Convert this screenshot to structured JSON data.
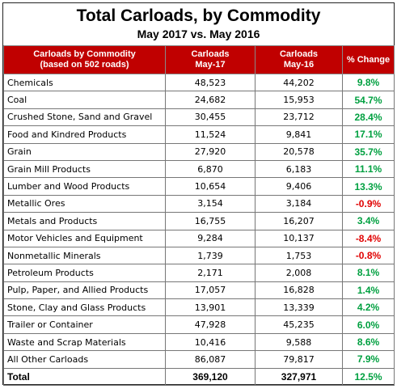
{
  "header": {
    "title": "Total Carloads, by Commodity",
    "subtitle": "May 2017 vs. May 2016"
  },
  "table": {
    "columns": [
      "Carloads by Commodity\n(based on 502 roads)",
      "Carloads\nMay-17",
      "Carloads\nMay-16",
      "% Change"
    ],
    "rows": [
      [
        "Chemicals",
        "48,523",
        "44,202",
        "9.8%"
      ],
      [
        "Coal",
        "24,682",
        "15,953",
        "54.7%"
      ],
      [
        "Crushed Stone, Sand and Gravel",
        "30,455",
        "23,712",
        "28.4%"
      ],
      [
        "Food and Kindred Products",
        "11,524",
        "9,841",
        "17.1%"
      ],
      [
        "Grain",
        "27,920",
        "20,578",
        "35.7%"
      ],
      [
        "Grain Mill Products",
        "6,870",
        "6,183",
        "11.1%"
      ],
      [
        "Lumber and Wood Products",
        "10,654",
        "9,406",
        "13.3%"
      ],
      [
        "Metallic Ores",
        "3,154",
        "3,184",
        "-0.9%"
      ],
      [
        "Metals and Products",
        "16,755",
        "16,207",
        "3.4%"
      ],
      [
        "Motor Vehicles and Equipment",
        "9,284",
        "10,137",
        "-8.4%"
      ],
      [
        "Nonmetallic Minerals",
        "1,739",
        "1,753",
        "-0.8%"
      ],
      [
        "Petroleum Products",
        "2,171",
        "2,008",
        "8.1%"
      ],
      [
        "Pulp, Paper, and Allied Products",
        "17,057",
        "16,828",
        "1.4%"
      ],
      [
        "Stone, Clay and Glass Products",
        "13,901",
        "13,339",
        "4.2%"
      ],
      [
        "Trailer or Container",
        "47,928",
        "45,235",
        "6.0%"
      ],
      [
        "Waste and Scrap Materials",
        "10,416",
        "9,588",
        "8.6%"
      ],
      [
        "All Other Carloads",
        "86,087",
        "79,817",
        "7.9%"
      ]
    ],
    "total": [
      "Total",
      "369,120",
      "327,971",
      "12.5%"
    ]
  }
}
